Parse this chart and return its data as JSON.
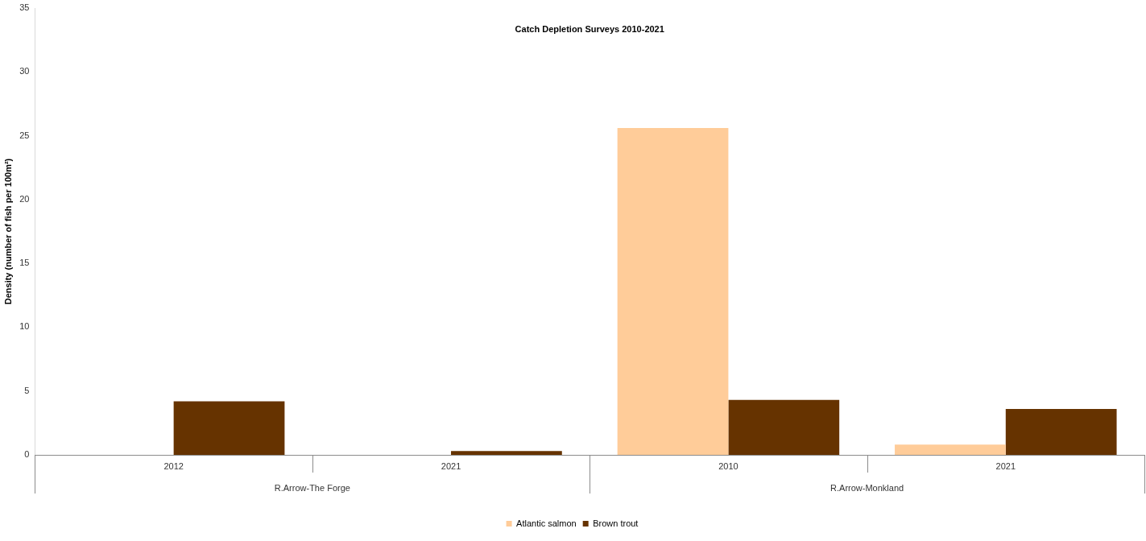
{
  "chart_data": {
    "type": "bar",
    "title": "Catch Depletion Surveys 2010-2021",
    "ylabel": "Density (number of fish per 100m²)",
    "categories": [
      "2012",
      "2021",
      "2010",
      "2021"
    ],
    "annotations": [
      "R.Arrow-The Forge",
      "R.Arrow-Monkland"
    ],
    "series": [
      {
        "name": "Atlantic salmon",
        "color": "#ffcc99",
        "values": [
          null,
          null,
          25.6,
          0.8
        ]
      },
      {
        "name": "Brown trout",
        "color": "#663300",
        "values": [
          4.2,
          0.3,
          4.3,
          3.6
        ]
      }
    ],
    "ylim": [
      0,
      35
    ],
    "yticks": [
      0,
      5,
      10,
      15,
      20,
      25,
      30,
      35
    ],
    "grid": false,
    "legend": "bottom"
  }
}
